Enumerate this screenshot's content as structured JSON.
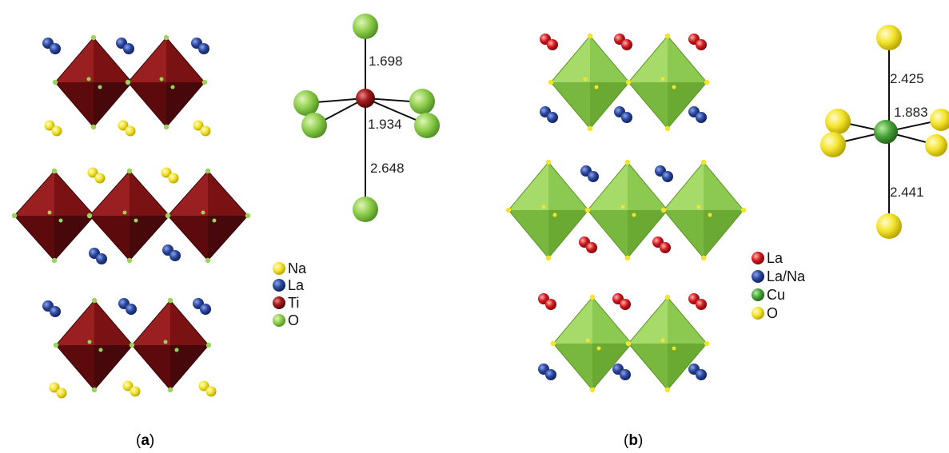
{
  "panel_a": {
    "bond_lengths": [
      "1.698",
      "1.934",
      "2.648"
    ],
    "legend": [
      {
        "label": "Na",
        "color": "#f2e33a"
      },
      {
        "label": "La",
        "color": "#27489c"
      },
      {
        "label": "Ti",
        "color": "#8e0f12"
      },
      {
        "label": "O",
        "color": "#8dcf4d"
      }
    ],
    "caption_open": "(",
    "caption_letter": "a",
    "caption_close": ")"
  },
  "panel_b": {
    "bond_lengths": [
      "2.425",
      "1.883",
      "2.441"
    ],
    "legend": [
      {
        "label": "La",
        "color": "#d41a1e"
      },
      {
        "label": "La/Na",
        "color": "#1f3c99"
      },
      {
        "label": "Cu",
        "color": "#4aa53b"
      },
      {
        "label": "O",
        "color": "#f4e42c"
      }
    ],
    "caption_open": "(",
    "caption_letter": "b",
    "caption_close": ")"
  },
  "colors": {
    "ti_octahedron": "#8a1a1a",
    "cu_octahedron": "#8fcf4a",
    "o_small": "#9bd45a",
    "o_yellow": "#f4e42c"
  }
}
